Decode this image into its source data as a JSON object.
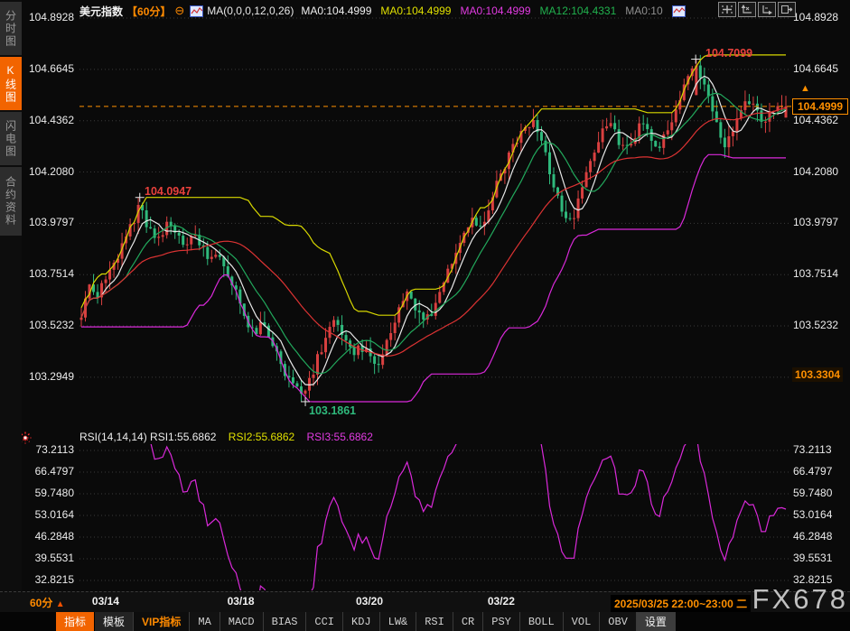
{
  "sidebar": {
    "tabs": [
      {
        "label": "分时图",
        "active": false
      },
      {
        "label": "K线图",
        "active": true
      },
      {
        "label": "闪电图",
        "active": false
      },
      {
        "label": "合约资料",
        "active": false
      }
    ]
  },
  "header": {
    "symbol": "美元指数",
    "period": "【60分】",
    "minus_icon": "⊖",
    "ma_formula": "MA(0,0,0,12,0,26)",
    "ma_values": [
      {
        "text": "MA0:104.4999",
        "color": "#f0f0f0"
      },
      {
        "text": "MA0:104.4999",
        "color": "#e0e000"
      },
      {
        "text": "MA0:104.4999",
        "color": "#e23be2"
      },
      {
        "text": "MA12:104.4331",
        "color": "#21b24e"
      },
      {
        "text": "MA0:10",
        "color": "#909090"
      }
    ]
  },
  "chart_data": [
    {
      "type": "candlestick",
      "symbol": "美元指数",
      "interval": "60分",
      "ylim": [
        103.08,
        104.91
      ],
      "yticks": [
        "104.8928",
        "104.6645",
        "104.4362",
        "104.2080",
        "103.9797",
        "103.7514",
        "103.5232",
        "103.2949"
      ],
      "xticks": [
        {
          "label": "03/14",
          "f": 0.0345
        },
        {
          "label": "03/18",
          "f": 0.2264
        },
        {
          "label": "03/20",
          "f": 0.409
        },
        {
          "label": "03/22",
          "f": 0.596
        }
      ],
      "current_price": "104.4999",
      "annotations": {
        "first_peak": {
          "price": "104.0947",
          "f": 0.083
        },
        "low": {
          "price": "103.1861",
          "f": 0.318
        },
        "high": {
          "price": "104.7099",
          "f": 0.872
        },
        "low_badge": "103.3304",
        "badge_arrow": "▲"
      },
      "candle_count": 174,
      "close_path": [
        [
          0.0,
          103.58
        ],
        [
          0.01,
          103.7
        ],
        [
          0.022,
          103.66
        ],
        [
          0.035,
          103.74
        ],
        [
          0.05,
          103.82
        ],
        [
          0.065,
          103.93
        ],
        [
          0.078,
          104.02
        ],
        [
          0.083,
          104.06
        ],
        [
          0.09,
          103.99
        ],
        [
          0.1,
          103.93
        ],
        [
          0.112,
          103.9
        ],
        [
          0.125,
          103.99
        ],
        [
          0.138,
          103.93
        ],
        [
          0.15,
          103.88
        ],
        [
          0.163,
          103.94
        ],
        [
          0.178,
          103.82
        ],
        [
          0.192,
          103.86
        ],
        [
          0.206,
          103.77
        ],
        [
          0.22,
          103.68
        ],
        [
          0.234,
          103.55
        ],
        [
          0.247,
          103.48
        ],
        [
          0.259,
          103.55
        ],
        [
          0.272,
          103.44
        ],
        [
          0.287,
          103.33
        ],
        [
          0.302,
          103.27
        ],
        [
          0.318,
          103.22
        ],
        [
          0.33,
          103.33
        ],
        [
          0.345,
          103.46
        ],
        [
          0.36,
          103.55
        ],
        [
          0.374,
          103.47
        ],
        [
          0.388,
          103.41
        ],
        [
          0.402,
          103.43
        ],
        [
          0.414,
          103.37
        ],
        [
          0.422,
          103.35
        ],
        [
          0.436,
          103.46
        ],
        [
          0.45,
          103.6
        ],
        [
          0.462,
          103.66
        ],
        [
          0.475,
          103.59
        ],
        [
          0.489,
          103.54
        ],
        [
          0.504,
          103.63
        ],
        [
          0.52,
          103.77
        ],
        [
          0.536,
          103.9
        ],
        [
          0.552,
          104.0
        ],
        [
          0.565,
          103.95
        ],
        [
          0.58,
          104.07
        ],
        [
          0.596,
          104.2
        ],
        [
          0.612,
          104.31
        ],
        [
          0.628,
          104.4
        ],
        [
          0.642,
          104.44
        ],
        [
          0.656,
          104.32
        ],
        [
          0.67,
          104.15
        ],
        [
          0.684,
          104.03
        ],
        [
          0.697,
          103.99
        ],
        [
          0.71,
          104.12
        ],
        [
          0.722,
          104.26
        ],
        [
          0.735,
          104.37
        ],
        [
          0.748,
          104.43
        ],
        [
          0.76,
          104.36
        ],
        [
          0.772,
          104.29
        ],
        [
          0.785,
          104.37
        ],
        [
          0.797,
          104.43
        ],
        [
          0.809,
          104.37
        ],
        [
          0.82,
          104.32
        ],
        [
          0.832,
          104.4
        ],
        [
          0.845,
          104.5
        ],
        [
          0.858,
          104.6
        ],
        [
          0.868,
          104.67
        ],
        [
          0.872,
          104.69
        ],
        [
          0.88,
          104.62
        ],
        [
          0.892,
          104.51
        ],
        [
          0.904,
          104.4
        ],
        [
          0.914,
          104.3
        ],
        [
          0.924,
          104.39
        ],
        [
          0.936,
          104.47
        ],
        [
          0.948,
          104.53
        ],
        [
          0.96,
          104.46
        ],
        [
          0.972,
          104.43
        ],
        [
          0.985,
          104.51
        ],
        [
          1.0,
          104.5
        ]
      ],
      "overlays": [
        {
          "name": "MA-white",
          "color": "#e8e8e8",
          "type": "sma",
          "window": 6
        },
        {
          "name": "MA-green",
          "color": "#22a85c",
          "type": "sma",
          "window": 12
        },
        {
          "name": "MA-red",
          "color": "#dd3333",
          "type": "sma",
          "window": 30
        },
        {
          "name": "upper-band-yellow",
          "color": "#d8d800",
          "type": "rollmax",
          "window": 26
        },
        {
          "name": "lower-band-magenta",
          "color": "#d929d9",
          "type": "rollmin",
          "window": 26
        }
      ],
      "up_color": "#d94040",
      "down_color": "#2fb97c"
    },
    {
      "type": "line",
      "name": "RSI(14,14,14)",
      "color": "#d929d9",
      "yticks": [
        "73.2113",
        "66.4797",
        "59.7480",
        "53.0164",
        "46.2848",
        "39.5531",
        "32.8215"
      ],
      "current": [
        "55.6862",
        "55.6862",
        "55.6862"
      ],
      "derived_from": "RSI(14) of candlestick closes"
    }
  ],
  "rsi_panel": {
    "header_main": "RSI(14,14,14) RSI1:55.6862",
    "header_rsi2": "RSI2:55.6862",
    "header_rsi3": "RSI3:55.6862"
  },
  "xaxis": {
    "period_label": "60分",
    "period_arrow": "▲",
    "timestamp": "2025/03/25 22:00~23:00 二"
  },
  "toolbar": {
    "items": [
      {
        "label": "指标",
        "style": "active",
        "cjk": true
      },
      {
        "label": "模板",
        "style": "dark",
        "cjk": true
      },
      {
        "label": "VIP指标",
        "style": "vip",
        "cjk": true
      },
      {
        "label": "MA"
      },
      {
        "label": "MACD"
      },
      {
        "label": "BIAS"
      },
      {
        "label": "CCI"
      },
      {
        "label": "KDJ"
      },
      {
        "label": "LW&"
      },
      {
        "label": "RSI"
      },
      {
        "label": "CR"
      },
      {
        "label": "PSY"
      },
      {
        "label": "BOLL"
      },
      {
        "label": "VOL"
      },
      {
        "label": "OBV"
      },
      {
        "label": "设置",
        "style": "settings",
        "cjk": true
      }
    ]
  },
  "watermark": "FX678",
  "colors": {
    "accent_orange": "#ff9000",
    "grid": "#3a3a3a",
    "up": "#d94040",
    "down": "#2fb97c",
    "rsi_line": "#d929d9"
  }
}
